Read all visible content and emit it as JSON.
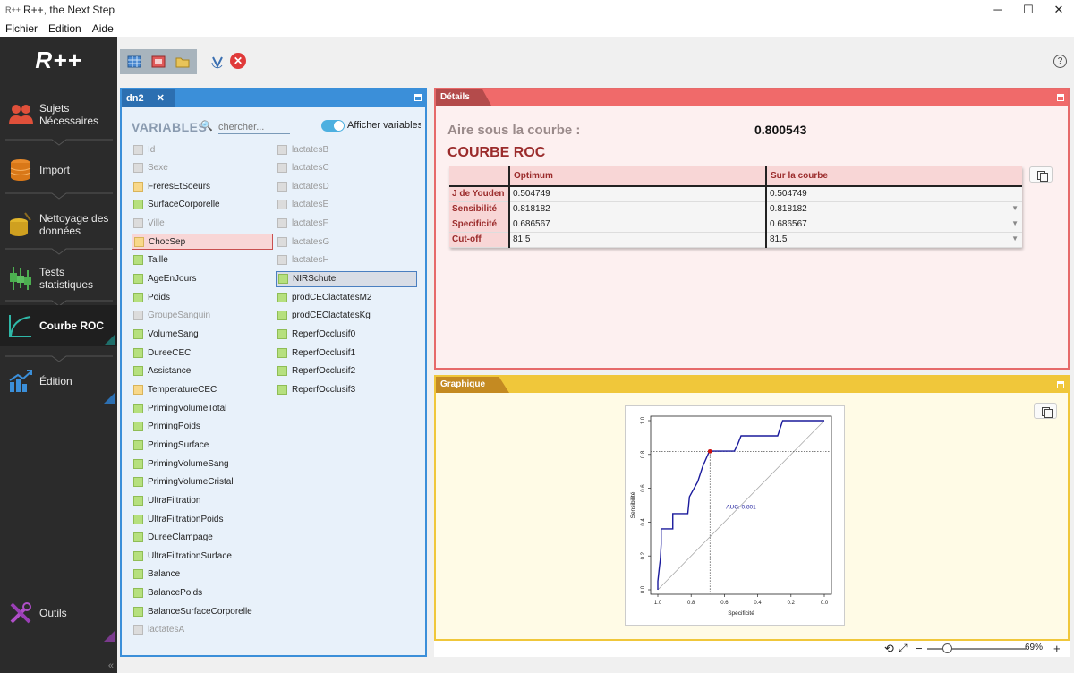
{
  "window": {
    "title": "R++, the Next Step",
    "app_icon": "R++",
    "minimize": "─",
    "maximize": "☐",
    "close": "✕"
  },
  "menu": [
    "Fichier",
    "Edition",
    "Aide"
  ],
  "sidebar": {
    "logo": "R++",
    "items": [
      {
        "label": "Sujets Nécessaires",
        "icon": "people-icon"
      },
      {
        "label": "Import",
        "icon": "database-icon"
      },
      {
        "label": "Nettoyage des données",
        "icon": "broom-database-icon"
      },
      {
        "label": "Tests statistiques",
        "icon": "boxplot-icon"
      },
      {
        "label": "Courbe ROC",
        "icon": "roc-curve-icon",
        "active": true
      },
      {
        "label": "Édition",
        "icon": "chart-arrow-icon"
      },
      {
        "label": "Outils",
        "icon": "tools-icon"
      }
    ],
    "collapse": "«"
  },
  "toolbar": {
    "help": "?",
    "close": "✕"
  },
  "dataset": {
    "tab": "dn2",
    "variables_title": "VARIABLES",
    "search_placeholder": "chercher...",
    "toggle_label": "Afficher variables ir",
    "col1": [
      {
        "name": "Id",
        "kind": "dis"
      },
      {
        "name": "Sexe",
        "kind": "dis"
      },
      {
        "name": "FreresEtSoeurs",
        "kind": "cat"
      },
      {
        "name": "SurfaceCorporelle",
        "kind": "num"
      },
      {
        "name": "Ville",
        "kind": "dis"
      },
      {
        "name": "ChocSep",
        "kind": "cat",
        "selected": "red"
      },
      {
        "name": "Taille",
        "kind": "num"
      },
      {
        "name": "AgeEnJours",
        "kind": "num"
      },
      {
        "name": "Poids",
        "kind": "num"
      },
      {
        "name": "GroupeSanguin",
        "kind": "dis"
      },
      {
        "name": "VolumeSang",
        "kind": "num"
      },
      {
        "name": "DureeCEC",
        "kind": "num"
      },
      {
        "name": "Assistance",
        "kind": "num"
      },
      {
        "name": "TemperatureCEC",
        "kind": "cat"
      },
      {
        "name": "PrimingVolumeTotal",
        "kind": "num"
      },
      {
        "name": "PrimingPoids",
        "kind": "num"
      },
      {
        "name": "PrimingSurface",
        "kind": "num"
      },
      {
        "name": "PrimingVolumeSang",
        "kind": "num"
      },
      {
        "name": "PrimingVolumeCristal",
        "kind": "num"
      },
      {
        "name": "UltraFiltration",
        "kind": "num"
      },
      {
        "name": "UltraFiltrationPoids",
        "kind": "num"
      },
      {
        "name": "DureeClampage",
        "kind": "num"
      },
      {
        "name": "UltraFiltrationSurface",
        "kind": "num"
      },
      {
        "name": "Balance",
        "kind": "num"
      },
      {
        "name": "BalancePoids",
        "kind": "num"
      },
      {
        "name": "BalanceSurfaceCorporelle",
        "kind": "num"
      },
      {
        "name": "lactatesA",
        "kind": "dis"
      }
    ],
    "col2": [
      {
        "name": "lactatesB",
        "kind": "dis"
      },
      {
        "name": "lactatesC",
        "kind": "dis"
      },
      {
        "name": "lactatesD",
        "kind": "dis"
      },
      {
        "name": "lactatesE",
        "kind": "dis"
      },
      {
        "name": "lactatesF",
        "kind": "dis"
      },
      {
        "name": "lactatesG",
        "kind": "dis"
      },
      {
        "name": "lactatesH",
        "kind": "dis"
      },
      {
        "name": "NIRSchute",
        "kind": "num",
        "selected": "blue"
      },
      {
        "name": "prodCEClactatesM2",
        "kind": "num"
      },
      {
        "name": "prodCEClactatesKg",
        "kind": "num"
      },
      {
        "name": "ReperfOcclusif0",
        "kind": "num"
      },
      {
        "name": "ReperfOcclusif1",
        "kind": "num"
      },
      {
        "name": "ReperfOcclusif2",
        "kind": "num"
      },
      {
        "name": "ReperfOcclusif3",
        "kind": "num"
      }
    ]
  },
  "details": {
    "tab": "Détails",
    "auc_label": "Aire sous la courbe :",
    "auc_value": "0.800543",
    "roc_title": "COURBE ROC",
    "table": {
      "headers": [
        "",
        "Optimum",
        "Sur la courbe"
      ],
      "rows": [
        {
          "label": "J de Youden",
          "optimum": "0.504749",
          "courbe": "0.504749"
        },
        {
          "label": "Sensibilité",
          "optimum": "0.818182",
          "courbe": "0.818182"
        },
        {
          "label": "Specificité",
          "optimum": "0.686567",
          "courbe": "0.686567"
        },
        {
          "label": "Cut-off",
          "optimum": "81.5",
          "courbe": "81.5"
        }
      ]
    }
  },
  "graph": {
    "tab": "Graphique",
    "zoom": "69%"
  },
  "chart_data": {
    "type": "line",
    "title": "",
    "xlabel": "Spécificité",
    "ylabel": "Sensibilité",
    "xlim": [
      1.0,
      0.0
    ],
    "ylim": [
      0.0,
      1.0
    ],
    "x_ticks": [
      "1.0",
      "0.8",
      "0.6",
      "0.4",
      "0.2",
      "0.0"
    ],
    "y_ticks": [
      "0.0",
      "0.2",
      "0.4",
      "0.6",
      "0.8",
      "1.0"
    ],
    "annotation": "AUC: 0.801",
    "series": [
      {
        "x": [
          1.0,
          1.0,
          0.99,
          0.985,
          0.98,
          0.98,
          0.91,
          0.91,
          0.82,
          0.81,
          0.76,
          0.73,
          0.69,
          0.54,
          0.52,
          0.5,
          0.28,
          0.25,
          0.0
        ],
        "y": [
          0.0,
          0.05,
          0.14,
          0.18,
          0.27,
          0.36,
          0.36,
          0.45,
          0.45,
          0.55,
          0.64,
          0.73,
          0.82,
          0.82,
          0.86,
          0.91,
          0.91,
          1.0,
          1.0
        ]
      }
    ],
    "optimum_point": {
      "x": 0.686567,
      "y": 0.818182
    },
    "colors": {
      "curve": "#1a1a9c",
      "optimum": "#cc1111",
      "diagonal": "#aaaaaa"
    }
  }
}
